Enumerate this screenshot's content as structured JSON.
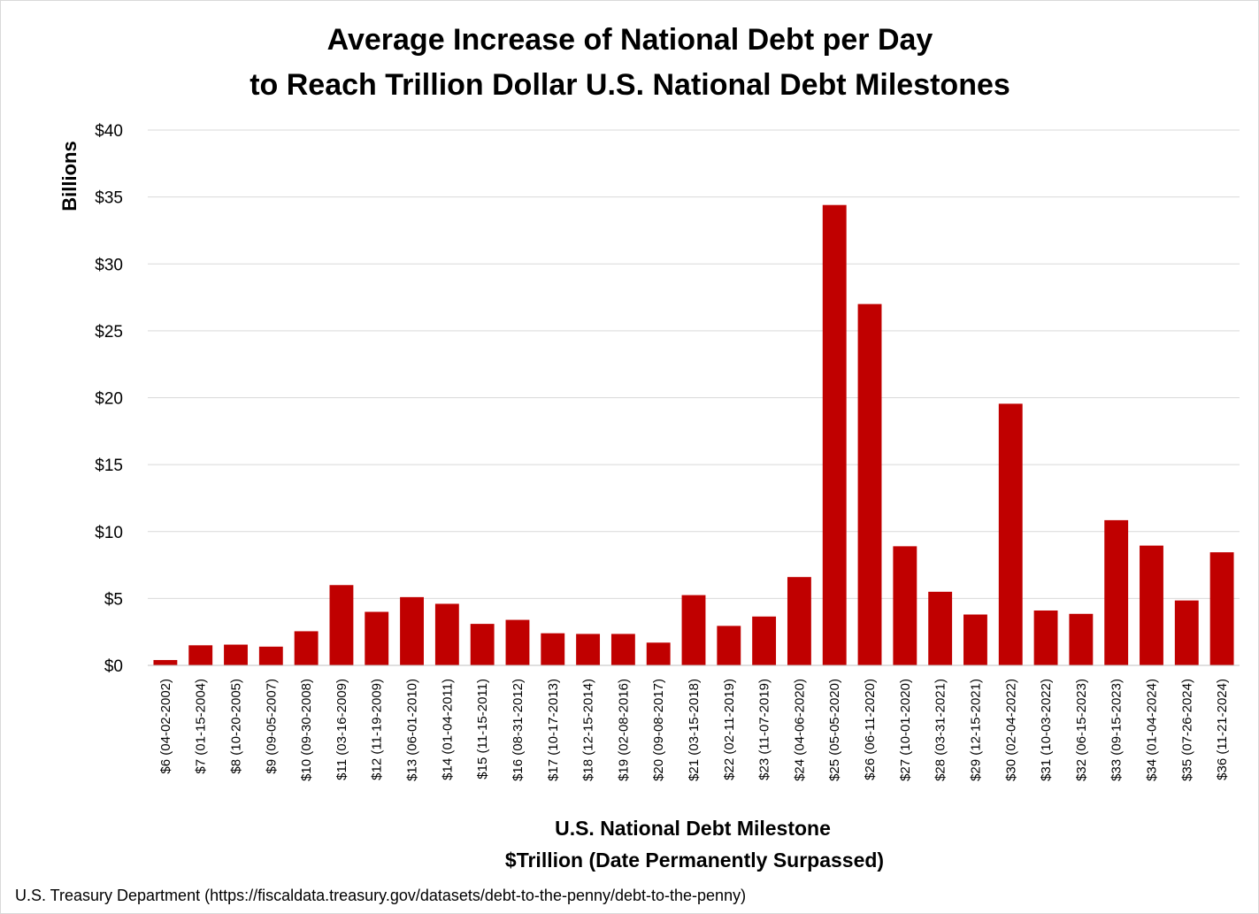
{
  "chart_data": {
    "type": "bar",
    "title": [
      "Average Increase of National Debt per Day",
      "to Reach Trillion Dollar U.S. National Debt Milestones"
    ],
    "ylabel": "Billions",
    "xlabel": [
      "U.S. National Debt Milestone",
      "$Trillion (Date Permanently Surpassed)"
    ],
    "ylim": [
      0,
      40
    ],
    "yticks": [
      0,
      5,
      10,
      15,
      20,
      25,
      30,
      35,
      40
    ],
    "ytick_labels": [
      "$0",
      "$5",
      "$10",
      "$15",
      "$20",
      "$25",
      "$30",
      "$35",
      "$40"
    ],
    "grid": true,
    "bar_color": "#c00000",
    "categories": [
      "$6 (04-02-2002)",
      "$7 (01-15-2004)",
      "$8 (10-20-2005)",
      "$9 (09-05-2007)",
      "$10 (09-30-2008)",
      "$11 (03-16-2009)",
      "$12 (11-19-2009)",
      "$13 (06-01-2010)",
      "$14 (01-04-2011)",
      "$15 (11-15-2011)",
      "$16 (08-31-2012)",
      "$17 (10-17-2013)",
      "$18 (12-15-2014)",
      "$19 (02-08-2016)",
      "$20 (09-08-2017)",
      "$21 (03-15-2018)",
      "$22 (02-11-2019)",
      "$23 (11-07-2019)",
      "$24 (04-06-2020)",
      "$25 (05-05-2020)",
      "$26 (06-11-2020)",
      "$27 (10-01-2020)",
      "$28 (03-31-2021)",
      "$29 (12-15-2021)",
      "$30 (02-04-2022)",
      "$31 (10-03-2022)",
      "$32 (06-15-2023)",
      "$33 (09-15-2023)",
      "$34 (01-04-2024)",
      "$35 (07-26-2024)",
      "$36 (11-21-2024)"
    ],
    "values": [
      0.4,
      1.5,
      1.55,
      1.4,
      2.55,
      6.0,
      4.0,
      5.1,
      4.6,
      3.1,
      3.4,
      2.4,
      2.35,
      2.35,
      1.7,
      5.25,
      2.95,
      3.65,
      6.6,
      34.4,
      27.0,
      8.9,
      5.5,
      3.8,
      19.55,
      4.1,
      3.85,
      10.85,
      8.95,
      4.85,
      8.45
    ]
  },
  "source": "U.S. Treasury Department (https://fiscaldata.treasury.gov/datasets/debt-to-the-penny/debt-to-the-penny)"
}
